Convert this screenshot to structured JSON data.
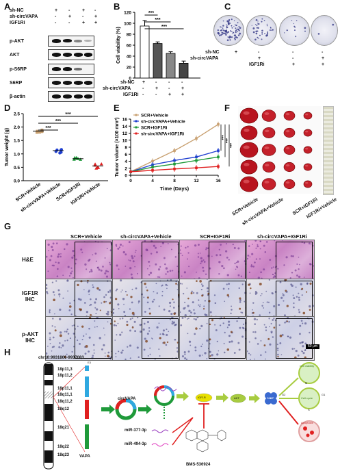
{
  "panels": {
    "A": "A",
    "B": "B",
    "C": "C",
    "D": "D",
    "E": "E",
    "F": "F",
    "G": "G",
    "H": "H"
  },
  "panelA": {
    "conditions": [
      {
        "label": "sh-NC",
        "marks": [
          "+",
          "-",
          "+",
          "-"
        ]
      },
      {
        "label": "sh-circVAPA",
        "marks": [
          "-",
          "+",
          "-",
          "+"
        ]
      },
      {
        "label": "IGF1Ri",
        "marks": [
          "-",
          "-",
          "+",
          "+"
        ]
      }
    ],
    "blots": [
      "p-AKT",
      "AKT",
      "p-S6RP",
      "S6RP",
      "β-actin"
    ]
  },
  "panelC": {
    "conditions": [
      {
        "label": "sh-NC",
        "marks": [
          "+",
          "-",
          "-",
          "-"
        ]
      },
      {
        "label": "sh-circVAPA",
        "marks": [
          "-",
          "+",
          "-",
          "+"
        ]
      },
      {
        "label": "IGF1Ri",
        "marks": [
          "-",
          "-",
          "+",
          "+"
        ]
      }
    ]
  },
  "panelB": {
    "conditions": [
      {
        "label": "sh-NC",
        "marks": [
          "+",
          "-",
          "-",
          "-"
        ]
      },
      {
        "label": "sh-circVAPA",
        "marks": [
          "-",
          "+",
          "-",
          "+"
        ]
      },
      {
        "label": "IGF1Ri",
        "marks": [
          "-",
          "-",
          "+",
          "+"
        ]
      }
    ],
    "sig": [
      "***",
      "***",
      "***"
    ]
  },
  "panelD": {
    "sig": [
      "***",
      "***",
      "***"
    ]
  },
  "panelE": {
    "sig": [
      "***",
      "***",
      "***"
    ]
  },
  "panelF": {
    "labels": [
      "SCR+Vehicle",
      "sh-circVAPA+Vehicle",
      "SCR+IGF1Ri",
      "IGF1Ri+Vehicle"
    ]
  },
  "panelG": {
    "columns": [
      "SCR+Vehicle",
      "sh-circVAPA+Vehicle",
      "SCR+IGF1Ri",
      "sh-circVAPA+IGF1Ri"
    ],
    "rows": [
      [
        "H&E"
      ],
      [
        "IGF1R",
        "IHC"
      ],
      [
        "p-AKT",
        "IHC"
      ]
    ],
    "scale": "50 μm"
  },
  "panelH": {
    "coords": "chr10:9931806-9937083",
    "bands": [
      "18p11,3",
      "18p11,2",
      "18p11,1",
      "18q11,1",
      "18q11,2",
      "18q12",
      "18q21",
      "18q22",
      "18q23"
    ],
    "labels": {
      "circ": "circVAPA",
      "mir1": "miR-377-3p",
      "mir2": "miR-494-3p",
      "drug": "BMS-536924",
      "gene": "VAPA",
      "igf": "IGF1R",
      "akt": "AKT",
      "s6": "S6RP",
      "g2": "G2",
      "m": "M",
      "g1": "G1",
      "s": "S",
      "cell_viab": "Cell viability",
      "cell_cycle": "Cell cycle",
      "apoptosis": "Apoptosis",
      "e3": "E3"
    }
  },
  "chart_data": [
    {
      "type": "bar",
      "categories": [
        "sh-NC",
        "sh-circVAPA",
        "IGF1Ri",
        "sh-circVAPA+IGF1Ri"
      ],
      "values": [
        95,
        63,
        45,
        27
      ],
      "errors": [
        10,
        3,
        3,
        4
      ],
      "ylabel": "Cell viability (%)",
      "ylim": [
        0,
        120
      ],
      "yticks": [
        0,
        20,
        40,
        60,
        80,
        100,
        120
      ]
    },
    {
      "type": "scatter",
      "categories": [
        "SCR+Vehicle",
        "sh-circVAPA+Vehicle",
        "SCR+IGF1Ri",
        "IGF1Ri+Vehicle"
      ],
      "means": [
        1.85,
        1.12,
        0.82,
        0.55
      ],
      "colors": [
        "#c8a070",
        "#1f3fd0",
        "#1f9a3a",
        "#e02020"
      ],
      "ylabel": "Tumor weight (g)",
      "ylim": [
        0.0,
        2.5
      ],
      "yticks": [
        "0.0",
        "0.5",
        "1.0",
        "1.5",
        "2.0",
        "2.5"
      ]
    },
    {
      "type": "line",
      "x": [
        0,
        4,
        8,
        12,
        16
      ],
      "xlabel": "Time (Days)",
      "ylabel": "Tumor volume (×100 mm³)",
      "ylim": [
        0,
        16
      ],
      "yticks": [
        0,
        2,
        4,
        6,
        8,
        10,
        12,
        14,
        16
      ],
      "series": [
        {
          "name": "SCR+Vehicle",
          "color": "#c8a070",
          "values": [
            1,
            4,
            7,
            10.5,
            14.5
          ]
        },
        {
          "name": "sh-circVAPA+Vehicle",
          "color": "#1f3fd0",
          "values": [
            1,
            3,
            4.2,
            5.2,
            7
          ]
        },
        {
          "name": "SCR+IGF1Ri",
          "color": "#1f9a3a",
          "values": [
            1,
            2.3,
            3.2,
            4.2,
            5.2
          ]
        },
        {
          "name": "sh-circVAPA+IGF1Ri",
          "color": "#e02020",
          "values": [
            1,
            1.4,
            1.8,
            2.1,
            2.5
          ]
        }
      ]
    }
  ]
}
